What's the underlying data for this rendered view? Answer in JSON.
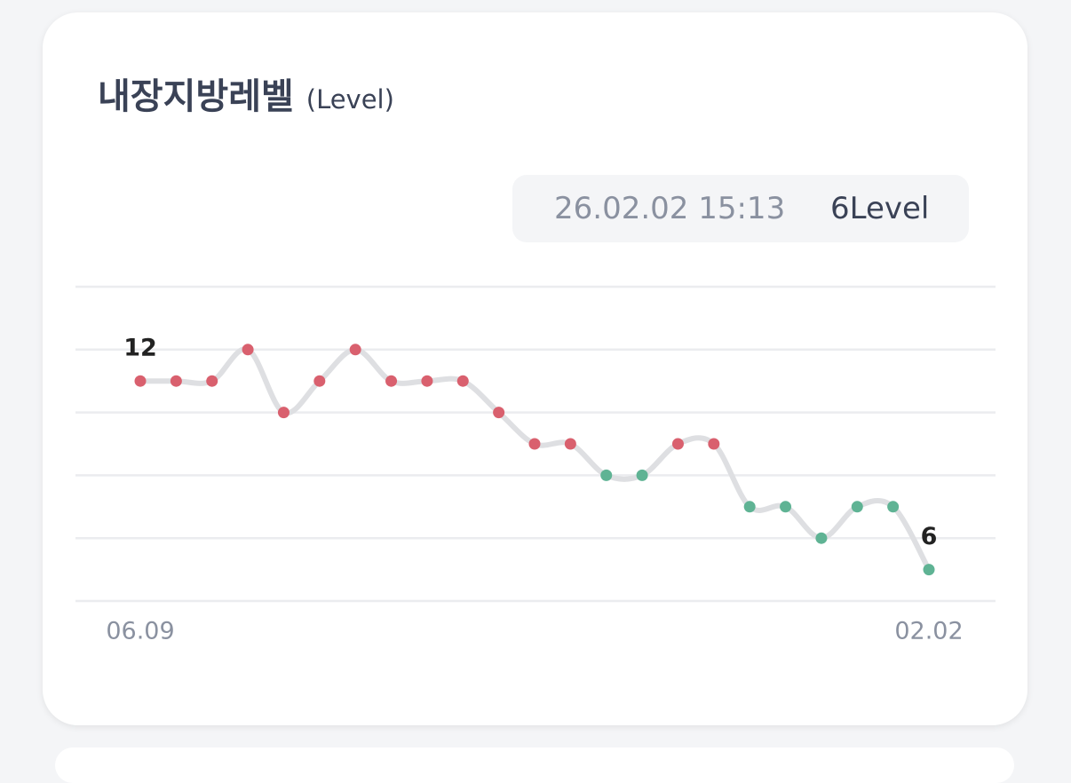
{
  "card": {
    "title": "내장지방레벨",
    "subtitle": "(Level)",
    "tooltip": {
      "date": "26.02.02 15:13",
      "value": "6Level"
    }
  },
  "chart_data": {
    "type": "line",
    "categories": [
      "06.09",
      null,
      null,
      null,
      null,
      null,
      null,
      null,
      null,
      null,
      null,
      null,
      null,
      null,
      null,
      null,
      null,
      null,
      null,
      null,
      null,
      null,
      "02.02"
    ],
    "values": [
      12,
      12,
      12,
      13,
      11,
      12,
      13,
      12,
      12,
      12,
      11,
      10,
      10,
      9,
      9,
      10,
      10,
      8,
      8,
      7,
      8,
      8,
      6
    ],
    "point_colors": [
      "#d9606e",
      "#d9606e",
      "#d9606e",
      "#d9606e",
      "#d9606e",
      "#d9606e",
      "#d9606e",
      "#d9606e",
      "#d9606e",
      "#d9606e",
      "#d9606e",
      "#d9606e",
      "#d9606e",
      "#5fb394",
      "#5fb394",
      "#d9606e",
      "#d9606e",
      "#5fb394",
      "#5fb394",
      "#5fb394",
      "#5fb394",
      "#5fb394",
      "#5fb394"
    ],
    "line_color": "#dedfe2",
    "ylim": [
      5,
      15
    ],
    "yticks": [
      5,
      7,
      9,
      11,
      13,
      15
    ],
    "grid": true
  }
}
